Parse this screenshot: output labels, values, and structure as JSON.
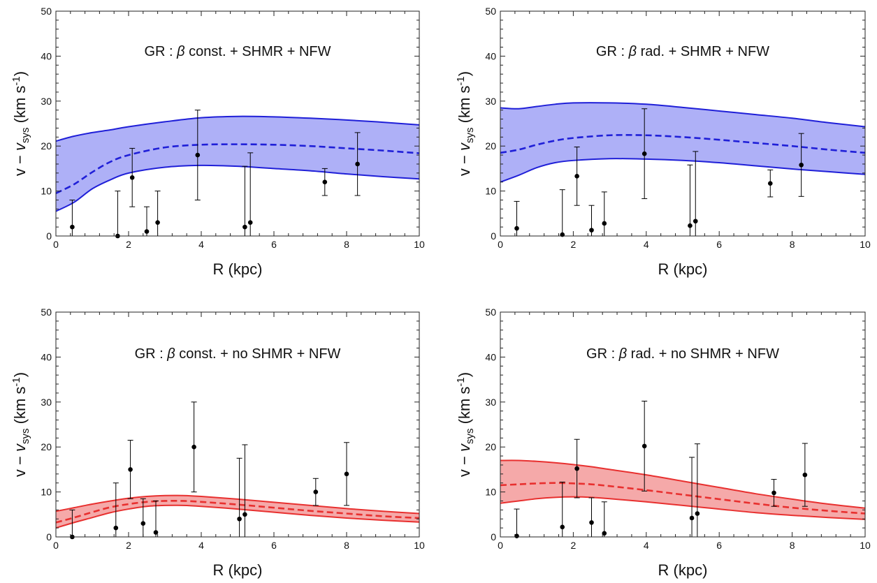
{
  "colors": {
    "blue_line": "#1f1fd8",
    "blue_fill": "#aeb0f7",
    "red_line": "#e8302f",
    "red_fill": "#f5a9a9",
    "points": "#000000"
  },
  "chart_data": [
    {
      "type": "line",
      "title": "GR : β const. + SHMR + NFW",
      "title_parts": [
        "GR : ",
        "β",
        " const. + SHMR + NFW"
      ],
      "xlabel": "R   (kpc)",
      "ylabel": "v − v_sys   (km s⁻¹)",
      "xlim": [
        0,
        10
      ],
      "ylim": [
        0,
        50
      ],
      "xticks": [
        0,
        2,
        4,
        6,
        8,
        10
      ],
      "yticks": [
        0,
        10,
        20,
        30,
        40,
        50
      ],
      "color": "blue",
      "band": {
        "x": [
          0,
          0.5,
          1,
          1.5,
          2,
          3,
          4,
          5,
          6,
          7,
          8,
          9,
          10
        ],
        "lower": [
          5.5,
          7.5,
          10.5,
          12.5,
          14,
          15.3,
          15.7,
          15.5,
          15,
          14.5,
          13.8,
          13.2,
          12.7
        ],
        "median": [
          9.5,
          11.5,
          14.2,
          16.5,
          18,
          19.7,
          20.3,
          20.4,
          20.3,
          20,
          19.5,
          19,
          18.4
        ],
        "upper": [
          21.1,
          22.2,
          23,
          23.6,
          24.3,
          25.4,
          26.3,
          26.6,
          26.5,
          26.2,
          25.8,
          25.3,
          24.7
        ]
      },
      "points": [
        {
          "x": 0.45,
          "y": 2,
          "err_low": 2,
          "err_high": 6
        },
        {
          "x": 1.7,
          "y": 0,
          "err_low": 0,
          "err_high": 10
        },
        {
          "x": 2.1,
          "y": 13,
          "err_low": 6.5,
          "err_high": 6.5
        },
        {
          "x": 2.5,
          "y": 1,
          "err_low": 1,
          "err_high": 5.5
        },
        {
          "x": 2.8,
          "y": 3,
          "err_low": 3,
          "err_high": 7
        },
        {
          "x": 3.9,
          "y": 18,
          "err_low": 10,
          "err_high": 10
        },
        {
          "x": 5.2,
          "y": 2,
          "err_low": 2,
          "err_high": 13.5
        },
        {
          "x": 5.35,
          "y": 3,
          "err_low": 3,
          "err_high": 15.5
        },
        {
          "x": 7.4,
          "y": 12,
          "err_low": 3,
          "err_high": 3
        },
        {
          "x": 8.3,
          "y": 16,
          "err_low": 7,
          "err_high": 7
        }
      ]
    },
    {
      "type": "line",
      "title": "GR : β rad. + SHMR + NFW",
      "title_parts": [
        "GR : ",
        "β",
        " rad. + SHMR + NFW"
      ],
      "xlabel": "R   (kpc)",
      "ylabel": "v − v_sys   (km s⁻¹)",
      "xlim": [
        0,
        10
      ],
      "ylim": [
        0,
        50
      ],
      "xticks": [
        0,
        2,
        4,
        6,
        8,
        10
      ],
      "yticks": [
        0,
        10,
        20,
        30,
        40,
        50
      ],
      "color": "blue",
      "band": {
        "x": [
          0,
          0.5,
          1,
          1.5,
          2,
          3,
          4,
          5,
          6,
          7,
          8,
          9,
          10
        ],
        "lower": [
          12,
          13.5,
          15.2,
          16.3,
          16.8,
          17.2,
          17.1,
          16.8,
          16.3,
          15.6,
          14.9,
          14.3,
          13.7
        ],
        "median": [
          18.5,
          19.2,
          20.3,
          21.2,
          21.8,
          22.4,
          22.4,
          22,
          21.4,
          20.7,
          20,
          19.2,
          18.5
        ],
        "upper": [
          28.5,
          28.3,
          28.8,
          29.3,
          29.6,
          29.6,
          29.3,
          28.6,
          27.8,
          27,
          26.2,
          25.2,
          24.3
        ]
      },
      "points": [
        {
          "x": 0.45,
          "y": 1.7,
          "err_low": 1.7,
          "err_high": 6
        },
        {
          "x": 1.7,
          "y": 0.3,
          "err_low": 0.3,
          "err_high": 10
        },
        {
          "x": 2.1,
          "y": 13.3,
          "err_low": 6.5,
          "err_high": 6.5
        },
        {
          "x": 2.5,
          "y": 1.3,
          "err_low": 1.3,
          "err_high": 5.5
        },
        {
          "x": 2.85,
          "y": 2.8,
          "err_low": 2.8,
          "err_high": 7
        },
        {
          "x": 3.95,
          "y": 18.3,
          "err_low": 10,
          "err_high": 10
        },
        {
          "x": 5.2,
          "y": 2.3,
          "err_low": 2.3,
          "err_high": 13.5
        },
        {
          "x": 5.35,
          "y": 3.3,
          "err_low": 3.3,
          "err_high": 15.5
        },
        {
          "x": 7.4,
          "y": 11.7,
          "err_low": 3,
          "err_high": 3
        },
        {
          "x": 8.25,
          "y": 15.8,
          "err_low": 7,
          "err_high": 7
        }
      ]
    },
    {
      "type": "line",
      "title": "GR : β const. + no SHMR + NFW",
      "title_parts": [
        "GR : ",
        "β",
        " const. + no SHMR + NFW"
      ],
      "xlabel": "R   (kpc)",
      "ylabel": "v − v_sys   (km s⁻¹)",
      "xlim": [
        0,
        10
      ],
      "ylim": [
        0,
        50
      ],
      "xticks": [
        0,
        2,
        4,
        6,
        8,
        10
      ],
      "yticks": [
        0,
        10,
        20,
        30,
        40,
        50
      ],
      "color": "red",
      "band": {
        "x": [
          0,
          0.5,
          1,
          1.5,
          2,
          2.5,
          3,
          3.5,
          4,
          5,
          6,
          7,
          8,
          9,
          10
        ],
        "lower": [
          2,
          3.2,
          4.3,
          5.4,
          6.2,
          6.8,
          7,
          7,
          6.8,
          6.2,
          5.5,
          4.8,
          4.2,
          3.7,
          3.3
        ],
        "median": [
          3.2,
          4.3,
          5.5,
          6.6,
          7.3,
          7.8,
          8,
          8,
          7.8,
          7.2,
          6.5,
          5.8,
          5.2,
          4.6,
          4.2
        ],
        "upper": [
          5.7,
          6.5,
          7.3,
          8,
          8.6,
          9,
          9.2,
          9.2,
          9,
          8.4,
          7.7,
          7,
          6.3,
          5.7,
          5.2
        ]
      },
      "points": [
        {
          "x": 0.45,
          "y": 0,
          "err_low": 0,
          "err_high": 6
        },
        {
          "x": 1.65,
          "y": 2,
          "err_low": 2,
          "err_high": 10
        },
        {
          "x": 2.05,
          "y": 15,
          "err_low": 6.5,
          "err_high": 6.5
        },
        {
          "x": 2.4,
          "y": 3,
          "err_low": 3,
          "err_high": 5.5
        },
        {
          "x": 2.75,
          "y": 1,
          "err_low": 1,
          "err_high": 7
        },
        {
          "x": 3.8,
          "y": 20,
          "err_low": 10,
          "err_high": 10
        },
        {
          "x": 5.05,
          "y": 4,
          "err_low": 4,
          "err_high": 13.5
        },
        {
          "x": 5.2,
          "y": 5,
          "err_low": 5,
          "err_high": 15.5
        },
        {
          "x": 7.15,
          "y": 10,
          "err_low": 3,
          "err_high": 3
        },
        {
          "x": 8,
          "y": 14,
          "err_low": 7,
          "err_high": 7
        }
      ]
    },
    {
      "type": "line",
      "title": "GR : β rad. + no SHMR + NFW",
      "title_parts": [
        "GR : ",
        "β",
        " rad. + no SHMR + NFW"
      ],
      "xlabel": "R   (kpc)",
      "ylabel": "v − v_sys   (km s⁻¹)",
      "xlim": [
        0,
        10
      ],
      "ylim": [
        0,
        50
      ],
      "xticks": [
        0,
        2,
        4,
        6,
        8,
        10
      ],
      "yticks": [
        0,
        10,
        20,
        30,
        40,
        50
      ],
      "color": "red",
      "band": {
        "x": [
          0,
          0.5,
          1,
          1.5,
          2,
          2.5,
          3,
          4,
          5,
          6,
          7,
          8,
          9,
          10
        ],
        "lower": [
          7.5,
          8,
          8.5,
          8.8,
          8.9,
          8.8,
          8.5,
          7.8,
          7,
          6.2,
          5.4,
          4.8,
          4.3,
          3.9
        ],
        "median": [
          11.5,
          11.7,
          11.9,
          12,
          11.9,
          11.7,
          11.3,
          10.4,
          9.4,
          8.4,
          7.4,
          6.5,
          5.8,
          5.2
        ],
        "upper": [
          17,
          17,
          16.8,
          16.5,
          16.1,
          15.6,
          15,
          13.8,
          12.4,
          11,
          9.6,
          8.4,
          7.3,
          6.4
        ]
      },
      "points": [
        {
          "x": 0.45,
          "y": 0.2,
          "err_low": 0.2,
          "err_high": 6
        },
        {
          "x": 1.7,
          "y": 2.2,
          "err_low": 2.2,
          "err_high": 10
        },
        {
          "x": 2.1,
          "y": 15.2,
          "err_low": 6.5,
          "err_high": 6.5
        },
        {
          "x": 2.5,
          "y": 3.2,
          "err_low": 3.2,
          "err_high": 5.5
        },
        {
          "x": 2.85,
          "y": 0.8,
          "err_low": 0.8,
          "err_high": 7
        },
        {
          "x": 3.95,
          "y": 20.2,
          "err_low": 10,
          "err_high": 10
        },
        {
          "x": 5.25,
          "y": 4.2,
          "err_low": 4.2,
          "err_high": 13.5
        },
        {
          "x": 5.4,
          "y": 5.2,
          "err_low": 5.2,
          "err_high": 15.5
        },
        {
          "x": 7.5,
          "y": 9.8,
          "err_low": 3,
          "err_high": 3
        },
        {
          "x": 8.35,
          "y": 13.8,
          "err_low": 7,
          "err_high": 7
        }
      ]
    }
  ]
}
